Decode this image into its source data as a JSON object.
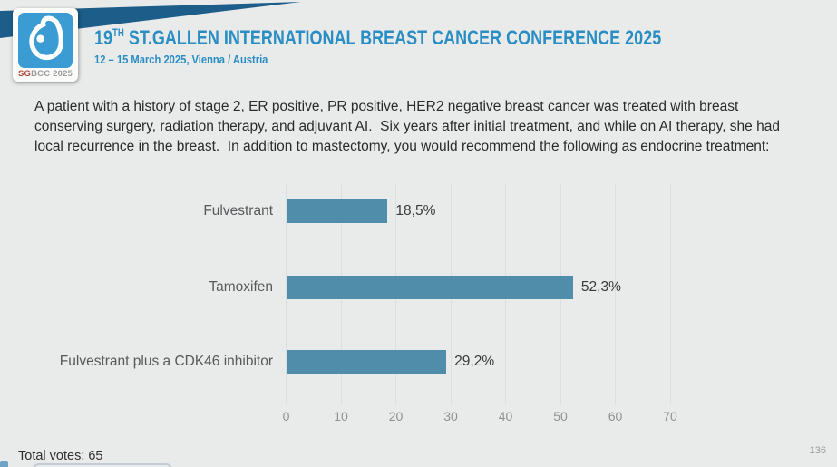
{
  "header": {
    "title_prefix": "19",
    "title_superscript": "TH",
    "title_rest": " ST.GALLEN INTERNATIONAL BREAST CANCER CONFERENCE 2025",
    "subtitle": "12 – 15 March 2025, Vienna / Austria",
    "logo": {
      "icon": "sgbcc-drop-icon",
      "text_sg": "SG",
      "text_rest": "BCC 2025"
    }
  },
  "question": "A patient with a history of stage 2, ER positive, PR positive, HER2 negative breast cancer was treated with breast conserving surgery, radiation therapy, and adjuvant AI.  Six years after initial treatment, and while on AI therapy, she had local recurrence in the breast.  In addition to mastectomy, you would recommend the following as endocrine treatment:",
  "chart_data": {
    "type": "bar",
    "orientation": "horizontal",
    "title": "",
    "categories": [
      "Fulvestrant",
      "Tamoxifen",
      "Fulvestrant plus a CDK46 inhibitor"
    ],
    "values": [
      18.5,
      52.3,
      29.2
    ],
    "value_labels": [
      "18,5%",
      "52,3%",
      "29,2%"
    ],
    "x_ticks": [
      0,
      10,
      20,
      30,
      40,
      50,
      60,
      70
    ],
    "xlim": [
      0,
      75
    ],
    "grid": true,
    "legend": false,
    "bar_color": "#4f8dab"
  },
  "footer": {
    "total_votes": "Total votes: 65",
    "page_number": "136"
  },
  "colors": {
    "background": "#e9eaea",
    "banner_blue": "#1c5d89",
    "logo_blue": "#3a9cd3",
    "title_blue": "#2a8ec4",
    "bar_blue": "#4f8dab",
    "logo_sg_red": "#b04a3c",
    "logo_gray": "#9b9b9b"
  }
}
